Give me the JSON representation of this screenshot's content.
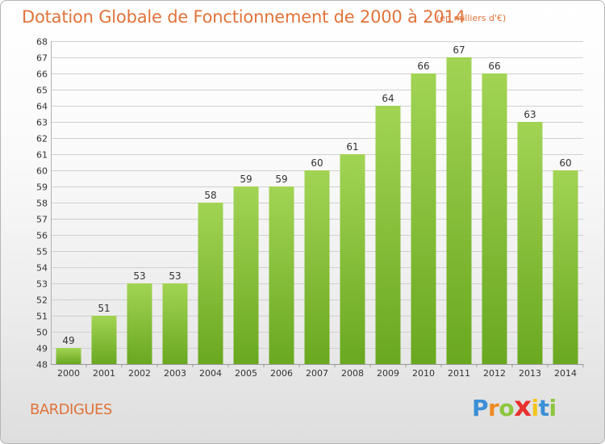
{
  "title": "Dotation Globale de Fonctionnement de 2000 à 2014",
  "subtitle": "(en milliers d'€)",
  "commune": "BARDIGUES",
  "logo": {
    "letters": [
      "P",
      "r",
      "o",
      "x",
      "i",
      "t",
      "i"
    ],
    "colors": [
      "#3b8fd6",
      "#f08a24",
      "#8cc63f",
      "#e8312f",
      "#f5c518",
      "#3b8fd6",
      "#8cc63f"
    ]
  },
  "colors": {
    "bar_top": "#a2d454",
    "bar_bottom": "#6aa820",
    "title": "#e0733a",
    "grid": "#d0d0d0"
  },
  "chart_data": {
    "type": "bar",
    "title": "Dotation Globale de Fonctionnement de 2000 à 2014",
    "subtitle": "(en milliers d'€)",
    "categories": [
      "2000",
      "2001",
      "2002",
      "2003",
      "2004",
      "2005",
      "2006",
      "2007",
      "2008",
      "2009",
      "2010",
      "2011",
      "2012",
      "2013",
      "2014"
    ],
    "values": [
      49,
      51,
      53,
      53,
      58,
      59,
      59,
      60,
      61,
      64,
      66,
      67,
      66,
      63,
      60
    ],
    "ylim": [
      48,
      68
    ],
    "yticks": [
      48,
      49,
      50,
      51,
      52,
      53,
      54,
      55,
      56,
      57,
      58,
      59,
      60,
      61,
      62,
      63,
      64,
      65,
      66,
      67,
      68
    ],
    "grid": "horizontal",
    "xlabel": "",
    "ylabel": ""
  }
}
